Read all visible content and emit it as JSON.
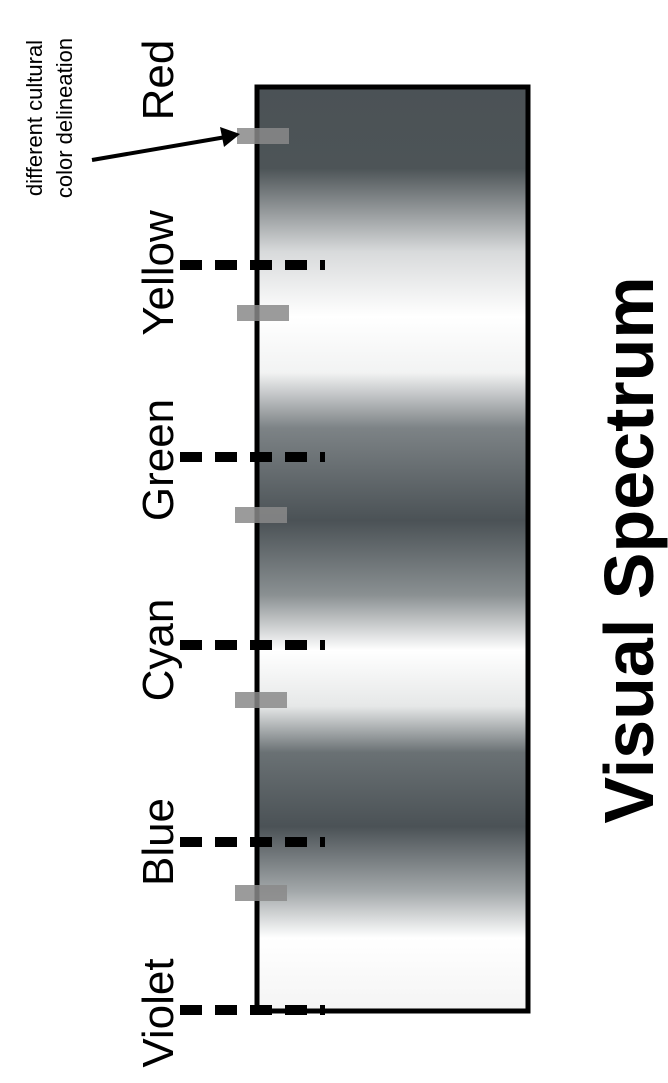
{
  "title": "Visual Spectrum",
  "annotation": {
    "lines": [
      "different cultural",
      "color delineation"
    ]
  },
  "colors": [
    "Red",
    "Yellow",
    "Green",
    "Cyan",
    "Blue",
    "Violet"
  ],
  "shading": {
    "dark": "#4b5256",
    "light": "#ffffff",
    "tick": "#000000",
    "cultural_mark": "#8a8a8a"
  }
}
